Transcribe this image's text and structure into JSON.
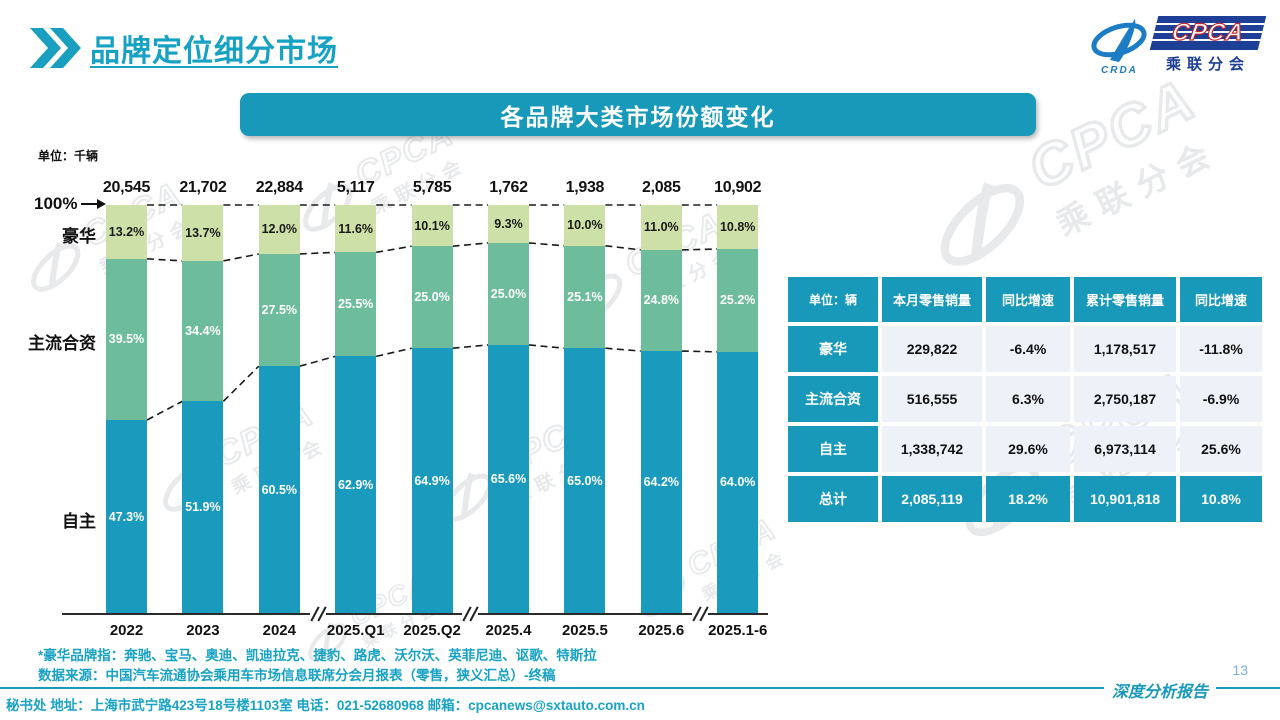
{
  "header": {
    "title": "品牌定位细分市场",
    "logo": {
      "cpca": "CPCA",
      "crda": "CRDA",
      "subtitle": "乘联分会"
    }
  },
  "banner": {
    "title": "各品牌大类市场份额变化"
  },
  "chart_data": {
    "type": "bar",
    "subtype": "100%-stacked-column",
    "unit_label": "单位：千辆",
    "axis_top_label": "100%",
    "categories": [
      "2022",
      "2023",
      "2024",
      "2025.Q1",
      "2025.Q2",
      "2025.4",
      "2025.5",
      "2025.6",
      "2025.1-6"
    ],
    "totals": [
      "20,545",
      "21,702",
      "22,884",
      "5,117",
      "5,785",
      "1,762",
      "1,938",
      "2,085",
      "10,902"
    ],
    "series": [
      {
        "name": "豪华",
        "color": "#cdе0a7",
        "color_hex": "#cde0a7",
        "text_color": "#1a1a1a",
        "values": [
          13.2,
          13.7,
          12.0,
          11.6,
          10.1,
          9.3,
          10.0,
          11.0,
          10.8
        ]
      },
      {
        "name": "主流合资",
        "color_hex": "#6dbd9d",
        "text_color": "#ffffff",
        "values": [
          39.5,
          34.4,
          27.5,
          25.5,
          25.0,
          25.0,
          25.1,
          24.8,
          25.2
        ]
      },
      {
        "name": "自主",
        "color_hex": "#1a9abc",
        "text_color": "#ffffff",
        "values": [
          47.3,
          51.9,
          60.5,
          62.9,
          64.9,
          65.6,
          65.0,
          64.2,
          64.0
        ]
      }
    ],
    "axis_breaks_after": [
      2,
      4,
      7
    ],
    "ylim": [
      0,
      100
    ],
    "grid": false,
    "legend_position": "left"
  },
  "table": {
    "header": [
      "单位：辆",
      "本月零售销量",
      "同比增速",
      "累计零售销量",
      "同比增速"
    ],
    "rows": [
      {
        "label": "豪华",
        "cells": [
          "229,822",
          "-6.4%",
          "1,178,517",
          "-11.8%"
        ],
        "total": false
      },
      {
        "label": "主流合资",
        "cells": [
          "516,555",
          "6.3%",
          "2,750,187",
          "-6.9%"
        ],
        "total": false
      },
      {
        "label": "自主",
        "cells": [
          "1,338,742",
          "29.6%",
          "6,973,114",
          "25.6%"
        ],
        "total": false
      },
      {
        "label": "总计",
        "cells": [
          "2,085,119",
          "18.2%",
          "10,901,818",
          "10.8%"
        ],
        "total": true
      }
    ]
  },
  "notes": [
    "*豪华品牌指：奔驰、宝马、奥迪、凯迪拉克、捷豹、路虎、沃尔沃、英菲尼迪、讴歌、特斯拉",
    "数据来源：中国汽车流通协会乘用车市场信息联席分会月报表（零售，狭义汇总）-终稿"
  ],
  "footer": {
    "contact": "秘书处  地址：上海市武宁路423号18号楼1103室  电话：021-52680968   邮箱：cpcanews@sxtauto.com.cn",
    "report_label": "深度分析报告",
    "page_number": "13"
  },
  "colors": {
    "teal": "#1899ba",
    "title_teal": "#17a2c4",
    "luxury_green": "#cde0a7",
    "mainstream_green": "#6dbd9d",
    "domestic_teal": "#1a9abc",
    "table_cell_bg": "#edf2f8",
    "logo_navy": "#1e3f96",
    "logo_blue": "#1d7dc4",
    "page_number_blue": "#79aede"
  }
}
